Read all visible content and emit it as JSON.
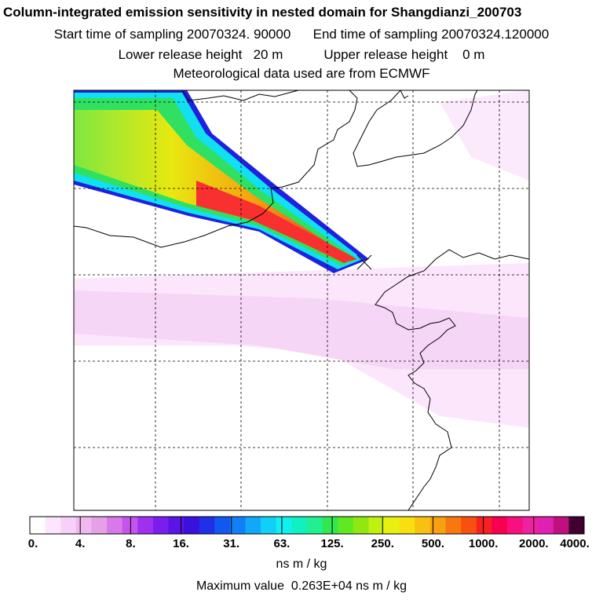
{
  "chart_data": {
    "type": "heatmap",
    "title": "Column-integrated emission sensitivity in nested domain for Shangdianzi_200703",
    "start_label": "Start time of sampling",
    "start_value": "20070324. 90000",
    "end_label": "End time of sampling",
    "end_value": "20070324.120000",
    "lower_label": "Lower release height",
    "lower_value": "20 m",
    "upper_label": "Upper release height",
    "upper_value": "0 m",
    "met_note": "Meteorological data used are from ECMWF",
    "colorbar_ticks": [
      "0.",
      "4.",
      "8.",
      "16.",
      "31.",
      "63.",
      "125.",
      "250.",
      "500.",
      "1000.",
      "2000.",
      "4000."
    ],
    "colorbar_colors": [
      "#ffffff",
      "#fde6fd",
      "#f7d0f7",
      "#efb8ef",
      "#e6a0e6",
      "#d978e8",
      "#c455ec",
      "#a030f0",
      "#7a1ef0",
      "#5a14e6",
      "#3a10dc",
      "#2030e8",
      "#1058f0",
      "#1080f8",
      "#10a8f8",
      "#10d0f8",
      "#10f0f0",
      "#10f0c0",
      "#20f090",
      "#30e850",
      "#60e820",
      "#90e810",
      "#c0f010",
      "#e8f010",
      "#f8e010",
      "#f8c010",
      "#f8a010",
      "#f87810",
      "#f85010",
      "#f82020",
      "#f80050",
      "#f81080",
      "#f020a0",
      "#e020b0",
      "#c01080",
      "#400030"
    ],
    "unit": "ns m / kg",
    "max_label": "Maximum value",
    "max_value": "0.263E+04 ns m / kg",
    "receptor": "Shangdianzi"
  }
}
